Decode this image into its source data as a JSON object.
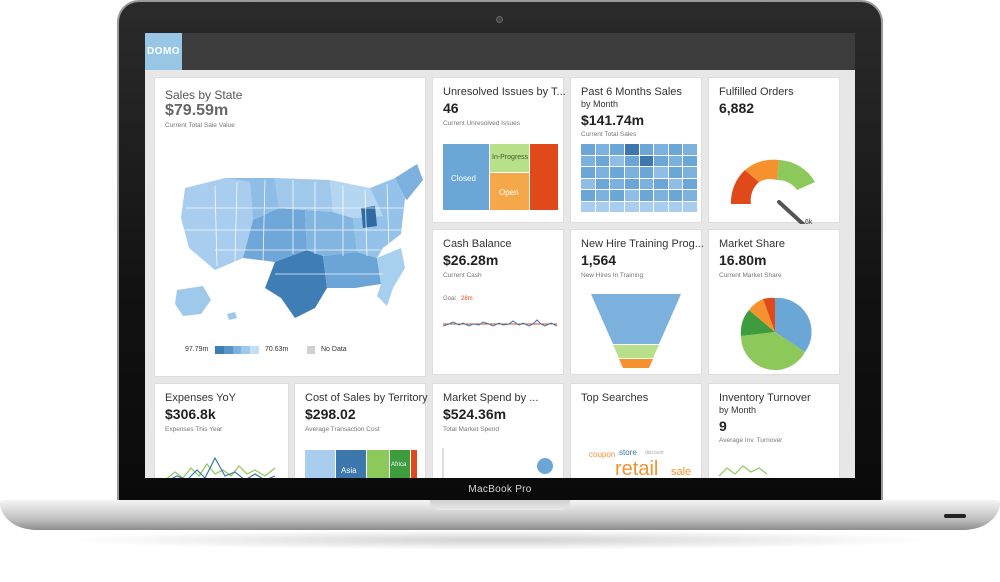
{
  "device": {
    "label": "MacBook Pro"
  },
  "app": {
    "logo": "DOMO"
  },
  "cards": {
    "sales_by_state": {
      "title": "Sales by State",
      "value": "$79.59m",
      "caption": "Current Total Sale Value",
      "legend_max": "97.79m",
      "legend_min": "70.63m",
      "legend_nodata": "No Data"
    },
    "unresolved": {
      "title": "Unresolved Issues by T...",
      "value": "46",
      "caption": "Current Unresolved Issues",
      "labels": {
        "closed": "Closed",
        "in_progress": "In-Progress",
        "open": "Open"
      }
    },
    "past6": {
      "title": "Past 6 Months Sales",
      "subtitle": "by Month",
      "value": "$141.74m",
      "caption": "Current Total Sales"
    },
    "fulfilled": {
      "title": "Fulfilled Orders",
      "value": "6,882",
      "gauge_label": "6k"
    },
    "cash": {
      "title": "Cash Balance",
      "value": "$26.28m",
      "caption": "Current Cash",
      "goal_label": "Goal",
      "goal_value": "28m"
    },
    "newhire": {
      "title": "New Hire Training Prog...",
      "value": "1,564",
      "caption": "New Hires In Training"
    },
    "market_share": {
      "title": "Market Share",
      "value": "16.80m",
      "caption": "Current Market Share"
    },
    "expenses": {
      "title": "Expenses YoY",
      "value": "$306.8k",
      "caption": "Expenses This Year"
    },
    "cost_sales": {
      "title": "Cost of Sales by Territory",
      "value": "$298.02",
      "caption": "Average Transaction Cost",
      "labels": {
        "asia": "Asia",
        "africa": "Africa"
      }
    },
    "market_spend": {
      "title": "Market Spend by ...",
      "value": "$524.36m",
      "caption": "Total Market Spend"
    },
    "top_searches": {
      "title": "Top Searches",
      "words": {
        "coupon": "coupon",
        "store": "store",
        "retail": "retail",
        "sale": "sale",
        "discount": "discount"
      }
    },
    "inventory": {
      "title": "Inventory Turnover",
      "subtitle": "by Month",
      "value": "9",
      "caption": "Average Inv. Turnover"
    }
  },
  "colors": {
    "light_blue": "#9fc9ea",
    "mid_blue": "#6aa6d6",
    "dark_blue": "#3d77ad",
    "green": "#8cc85a",
    "orange": "#f5922e",
    "red_orange": "#e04a1b",
    "light_green": "#b8e08a"
  }
}
